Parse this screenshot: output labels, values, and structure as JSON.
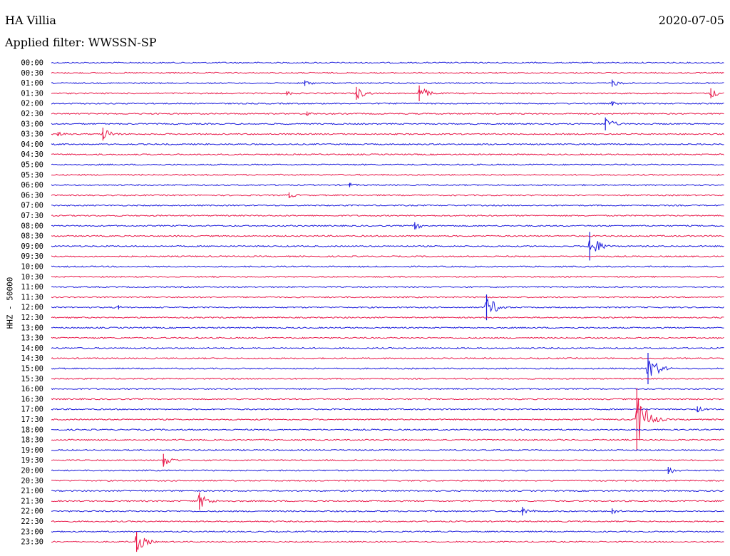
{
  "header": {
    "station": "HA Villia",
    "date": "2020-07-05",
    "filter_label": "Applied filter: WWSSN-SP"
  },
  "chart_data": {
    "type": "helicorder",
    "title": "HA Villia",
    "date": "2020-07-05",
    "filter": "WWSSN-SP",
    "ylabel": "HHZ - 50000",
    "trace_minutes": 30,
    "trace_colors": [
      "#1a1adb",
      "#e8194a"
    ],
    "row_labels": [
      "00:00",
      "00:30",
      "01:00",
      "01:30",
      "02:00",
      "02:30",
      "03:00",
      "03:30",
      "04:00",
      "04:30",
      "05:00",
      "05:30",
      "06:00",
      "06:30",
      "07:00",
      "07:30",
      "08:00",
      "08:30",
      "09:00",
      "09:30",
      "10:00",
      "10:30",
      "11:00",
      "11:30",
      "12:00",
      "12:30",
      "13:00",
      "13:30",
      "14:00",
      "14:30",
      "15:00",
      "15:30",
      "16:00",
      "16:30",
      "17:00",
      "17:30",
      "18:00",
      "18:30",
      "19:00",
      "19:30",
      "20:00",
      "20:30",
      "21:00",
      "21:30",
      "22:00",
      "22:30",
      "23:00",
      "23:30"
    ],
    "events": [
      {
        "row": 2,
        "minute": 11.3,
        "amplitude": 4
      },
      {
        "row": 2,
        "minute": 25.0,
        "amplitude": 5
      },
      {
        "row": 3,
        "minute": 10.5,
        "amplitude": 3
      },
      {
        "row": 3,
        "minute": 13.6,
        "amplitude": 9
      },
      {
        "row": 3,
        "minute": 16.4,
        "amplitude": 11
      },
      {
        "row": 3,
        "minute": 29.4,
        "amplitude": 7
      },
      {
        "row": 4,
        "minute": 25.0,
        "amplitude": 3
      },
      {
        "row": 5,
        "minute": 11.4,
        "amplitude": 3
      },
      {
        "row": 6,
        "minute": 24.7,
        "amplitude": 9
      },
      {
        "row": 7,
        "minute": 0.3,
        "amplitude": 3
      },
      {
        "row": 7,
        "minute": 2.3,
        "amplitude": 9
      },
      {
        "row": 12,
        "minute": 13.3,
        "amplitude": 3
      },
      {
        "row": 13,
        "minute": 10.6,
        "amplitude": 4
      },
      {
        "row": 16,
        "minute": 16.2,
        "amplitude": 5
      },
      {
        "row": 18,
        "minute": 24.0,
        "amplitude": 20
      },
      {
        "row": 24,
        "minute": 3.0,
        "amplitude": 3
      },
      {
        "row": 24,
        "minute": 19.4,
        "amplitude": 18
      },
      {
        "row": 30,
        "minute": 26.6,
        "amplitude": 22
      },
      {
        "row": 35,
        "minute": 26.1,
        "amplitude": 44
      },
      {
        "row": 34,
        "minute": 28.8,
        "amplitude": 4
      },
      {
        "row": 39,
        "minute": 5.0,
        "amplitude": 9
      },
      {
        "row": 40,
        "minute": 27.5,
        "amplitude": 5
      },
      {
        "row": 43,
        "minute": 6.6,
        "amplitude": 12
      },
      {
        "row": 44,
        "minute": 21.0,
        "amplitude": 6
      },
      {
        "row": 44,
        "minute": 25.0,
        "amplitude": 4
      },
      {
        "row": 47,
        "minute": 3.8,
        "amplitude": 14
      }
    ]
  }
}
